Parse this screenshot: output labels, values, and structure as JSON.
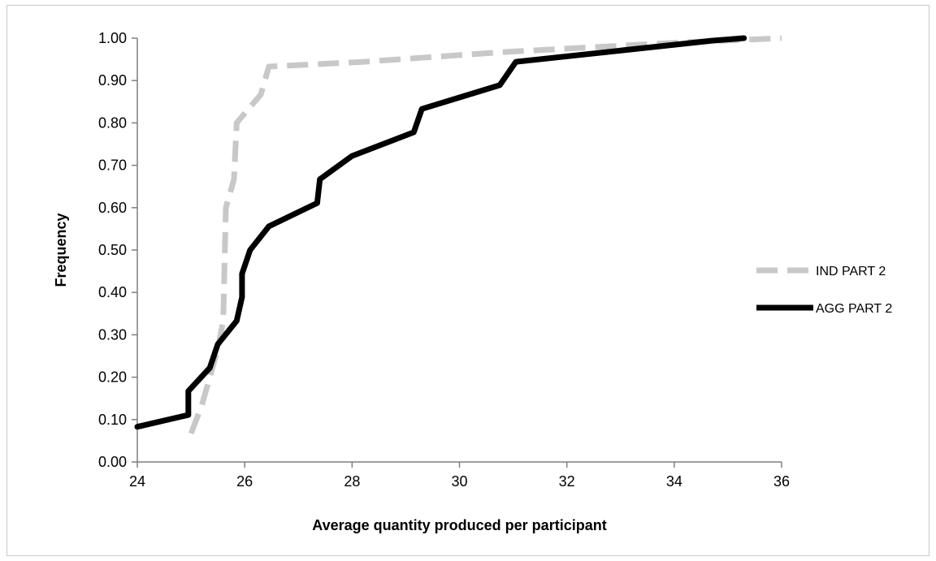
{
  "chart_data": {
    "type": "line",
    "title": "",
    "xlabel": "Average quantity produced per participant",
    "ylabel": "Frequency",
    "xlim": [
      24,
      36
    ],
    "ylim": [
      0,
      1
    ],
    "x_ticks": [
      "24",
      "26",
      "28",
      "30",
      "32",
      "34",
      "36"
    ],
    "x_tick_values": [
      24,
      26,
      28,
      30,
      32,
      34,
      36
    ],
    "y_ticks": [
      "0.00",
      "0.10",
      "0.20",
      "0.30",
      "0.40",
      "0.50",
      "0.60",
      "0.70",
      "0.80",
      "0.90",
      "1.00"
    ],
    "y_tick_values": [
      0,
      0.1,
      0.2,
      0.3,
      0.4,
      0.5,
      0.6,
      0.7,
      0.8,
      0.9,
      1.0
    ],
    "grid": false,
    "legend": "right",
    "series": [
      {
        "name": "IND PART 2",
        "color": "#c8c8c8",
        "style": "dashed",
        "points": [
          [
            25.0,
            0.067
          ],
          [
            25.2,
            0.133
          ],
          [
            25.5,
            0.267
          ],
          [
            25.6,
            0.333
          ],
          [
            25.65,
            0.6
          ],
          [
            25.8,
            0.667
          ],
          [
            25.85,
            0.8
          ],
          [
            26.3,
            0.867
          ],
          [
            26.45,
            0.933
          ],
          [
            28.2,
            0.944
          ],
          [
            30.8,
            0.967
          ],
          [
            34.0,
            0.989
          ],
          [
            36.0,
            1.0
          ]
        ]
      },
      {
        "name": "AGG PART 2",
        "color": "#000000",
        "style": "solid",
        "points": [
          [
            24.0,
            0.083
          ],
          [
            24.95,
            0.111
          ],
          [
            24.95,
            0.167
          ],
          [
            25.35,
            0.222
          ],
          [
            25.5,
            0.278
          ],
          [
            25.85,
            0.333
          ],
          [
            25.95,
            0.389
          ],
          [
            25.95,
            0.444
          ],
          [
            26.1,
            0.5
          ],
          [
            26.45,
            0.556
          ],
          [
            27.35,
            0.611
          ],
          [
            27.4,
            0.667
          ],
          [
            28.0,
            0.722
          ],
          [
            29.15,
            0.778
          ],
          [
            29.3,
            0.833
          ],
          [
            30.75,
            0.889
          ],
          [
            31.05,
            0.944
          ],
          [
            34.7,
            0.994
          ],
          [
            35.3,
            1.0
          ]
        ]
      }
    ]
  }
}
